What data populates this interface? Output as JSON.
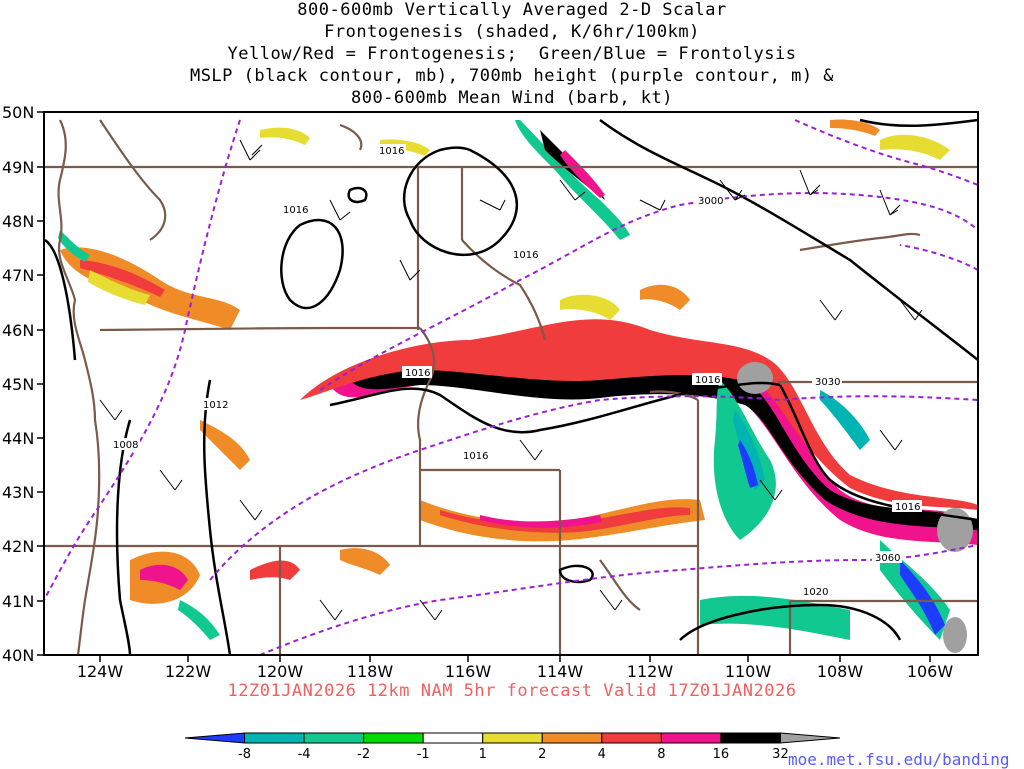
{
  "title_lines": [
    "800-600mb Vertically Averaged 2-D Scalar",
    "Frontogenesis (shaded, K/6hr/100km)",
    "Yellow/Red = Frontogenesis;  Green/Blue = Frontolysis",
    "MSLP (black contour, mb), 700mb height (purple contour, m) &",
    "800-600mb Mean Wind (barb, kt)"
  ],
  "lat_labels": [
    "50N",
    "49N",
    "48N",
    "47N",
    "46N",
    "45N",
    "44N",
    "43N",
    "42N",
    "41N",
    "40N"
  ],
  "lon_labels": [
    "124W",
    "122W",
    "120W",
    "118W",
    "116W",
    "114W",
    "112W",
    "110W",
    "108W",
    "106W"
  ],
  "valid_text": "12Z01JAN2026 12km NAM 5hr forecast Valid 17Z01JAN2026",
  "colorbar": {
    "labels": [
      "-8",
      "-4",
      "-2",
      "-1",
      "1",
      "2",
      "4",
      "8",
      "16",
      "32"
    ],
    "colors": [
      "#1e3cff",
      "#00b4b4",
      "#10c890",
      "#00dc00",
      "#ffffff",
      "#e6dc32",
      "#f08c28",
      "#f03c3c",
      "#f0148c",
      "#000000",
      "#a0a0a0"
    ]
  },
  "contour_labels": {
    "mslp": [
      "1016",
      "1016",
      "1016",
      "1016",
      "1016",
      "1016",
      "1016",
      "1012",
      "1008",
      "1020"
    ],
    "height": [
      "3000",
      "3030",
      "3060"
    ]
  },
  "credit": "moe.met.fsu.edu/banding"
}
